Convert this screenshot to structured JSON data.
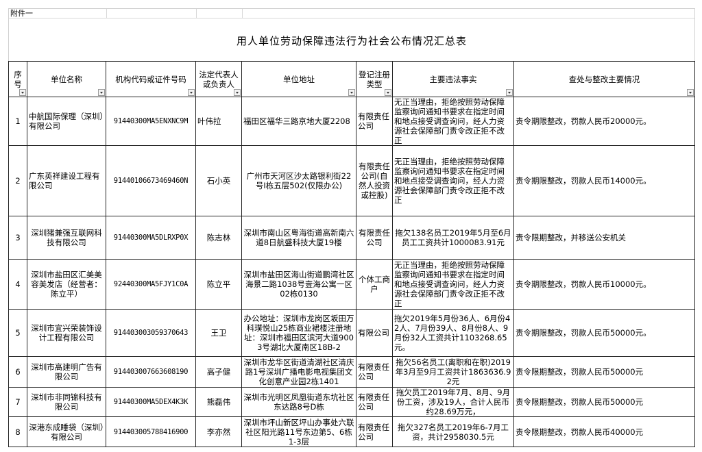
{
  "attachment_label": "附件一",
  "title": "用人单位劳动保障违法行为社会公布情况汇总表",
  "headers": [
    "序号",
    "单位名称",
    "机构代码或证件号码",
    "法定代表人或负责人",
    "单位地址",
    "登记注册类型",
    "主要违法事实",
    "查处与整改主要情况"
  ],
  "filter_icon": "dropdown-arrow-icon",
  "rows": [
    {
      "no": "1",
      "name": "中航国际保理（深圳）有限公司",
      "code": "91440300MA5ENXNC9M",
      "rep": "叶伟拉",
      "addr": "福田区福华三路京地大厦2208",
      "type": "有限责任公司",
      "fact": "无正当理由，拒绝按照劳动保障监察询问通知书要求在指定时间和地点接受调查询问，经人力资源社会保障部门责令改正拒不改正",
      "result": "责令期限整改，罚款人民币20000元。"
    },
    {
      "no": "2",
      "name": "广东英祥建设工程有限公司",
      "code": "91440106673469460N",
      "rep": "石小英",
      "addr": "广州市天河区沙太路银利街22号I栋五层502(仅限办公)",
      "type": "有限责任公司(自然人投资或控股)",
      "fact": "无正当理由，拒绝按照劳动保障监察询问通知书要求在指定时间和地点接受调查询问，经人力资源社会保障部门责令改正拒不改正",
      "result": "责令期限整改，罚款人民币14000元。"
    },
    {
      "no": "3",
      "name": "深圳猪兼强互联网科技有限公司",
      "code": "91440300MA5DLRXP0X",
      "rep": "陈志林",
      "addr": "深圳市南山区粤海街道高新南六道8日航盛科技大厦19楼",
      "type": "有限责任公司",
      "fact": "拖欠138名员工2019年5月至6月员工工资共计1000083.91元",
      "result": "责令限期整改，并移送公安机关"
    },
    {
      "no": "4",
      "name": "深圳市盐田区汇美美容美发店（经营者：陈立平）",
      "code": "92440300MA5FJY1C0A",
      "rep": "陈立平",
      "addr": "深圳市盐田区海山街道鹏湾社区海景二路1038号壹海公寓一区02栋0130",
      "type": "个体工商户",
      "fact": "无正当理由，拒绝按照劳动保障监察询问通知书要求在指定时间和地点接受调查询问，经人力资源社会保障部门责令改正拒不改正",
      "result": "责令期限整改，罚款人民币10000元。"
    },
    {
      "no": "5",
      "name": "深圳市宜兴荣装饰设计工程有限公司",
      "code": "914403003059370643",
      "rep": "王卫",
      "addr": "办公地址：深圳市龙岗区坂田万科璞悦山25栋商业裙楼注册地址：深圳市福田区滨河大道9003号湖北大厦南区18B-2",
      "type": "有限公司",
      "fact": "拖欠2019年5月份36人、6月份42人、7月份39人、8月份8人、9月份32人工资共计1103268.65元。",
      "result": "责令期限整改，罚款人民币50000元。"
    },
    {
      "no": "6",
      "name": "深圳市高建明广告有限公司",
      "code": "914403007663608190",
      "rep": "高子健",
      "addr": "深圳市龙华区街道清湖社区清庆路1号深圳广播电影电视集团文化创意产业园2栋1401",
      "type": "有限责任公司",
      "fact": "拖欠56名员工(离职和在职)2019年3月至9月工资共计1863636.92元",
      "result": "责令限期整改，罚款人民币50000元"
    },
    {
      "no": "7",
      "name": "深圳市非同锦科技有限公司",
      "code": "91440300MA5DEX4K3K",
      "rep": "熊磊伟",
      "addr": "深圳市光明区凤凰街道东坑社区东达路8号D栋",
      "type": "有限责任公司",
      "fact": "拖欠员工2019年7月、8月、9月份工资，涉及19人，合计人民币约28.69万元，",
      "result": "责令限期整改，罚款人民币50000元"
    },
    {
      "no": "8",
      "name": "深港东成睡袋（深圳）有限公司",
      "code": "914403005788416900",
      "rep": "李亦然",
      "addr": "深圳市坪山新区坪山办事处六联社区阳光路11号东边第5、6栋1-3层",
      "type": "有限责任公司",
      "fact": "拖欠327名员工2019年6-7月工资，共计2958030.5元",
      "result": "责令限期整改，罚款人民币40000元"
    }
  ]
}
